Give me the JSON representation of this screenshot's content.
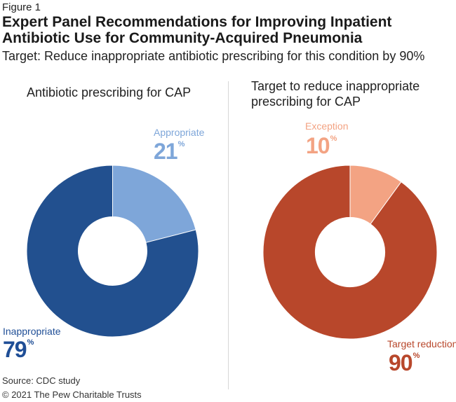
{
  "figure_label": "Figure 1",
  "title": "Expert Panel Recommendations for Improving Inpatient Antibiotic Use for Community-Acquired Pneumonia",
  "subtitle": "Target: Reduce inappropriate antibiotic prescribing for this condition by 90%",
  "source": "Source: CDC study",
  "copyright": "© 2021 The Pew Charitable Trusts",
  "percent_sign": "%",
  "chart_data": [
    {
      "type": "pie",
      "title": "Antibiotic prescribing for CAP",
      "donut": true,
      "slices": [
        {
          "label": "Appropriate",
          "value": 21,
          "display": "21",
          "color": "#7ea6d9"
        },
        {
          "label": "Inappropriate",
          "value": 79,
          "display": "79",
          "color": "#22508f"
        }
      ]
    },
    {
      "type": "pie",
      "title": "Target to reduce inappropriate prescribing for CAP",
      "donut": true,
      "slices": [
        {
          "label": "Exception",
          "value": 10,
          "display": "10",
          "color": "#f3a383"
        },
        {
          "label": "Target reduction",
          "value": 90,
          "display": "90",
          "color": "#b8472b"
        }
      ]
    }
  ]
}
